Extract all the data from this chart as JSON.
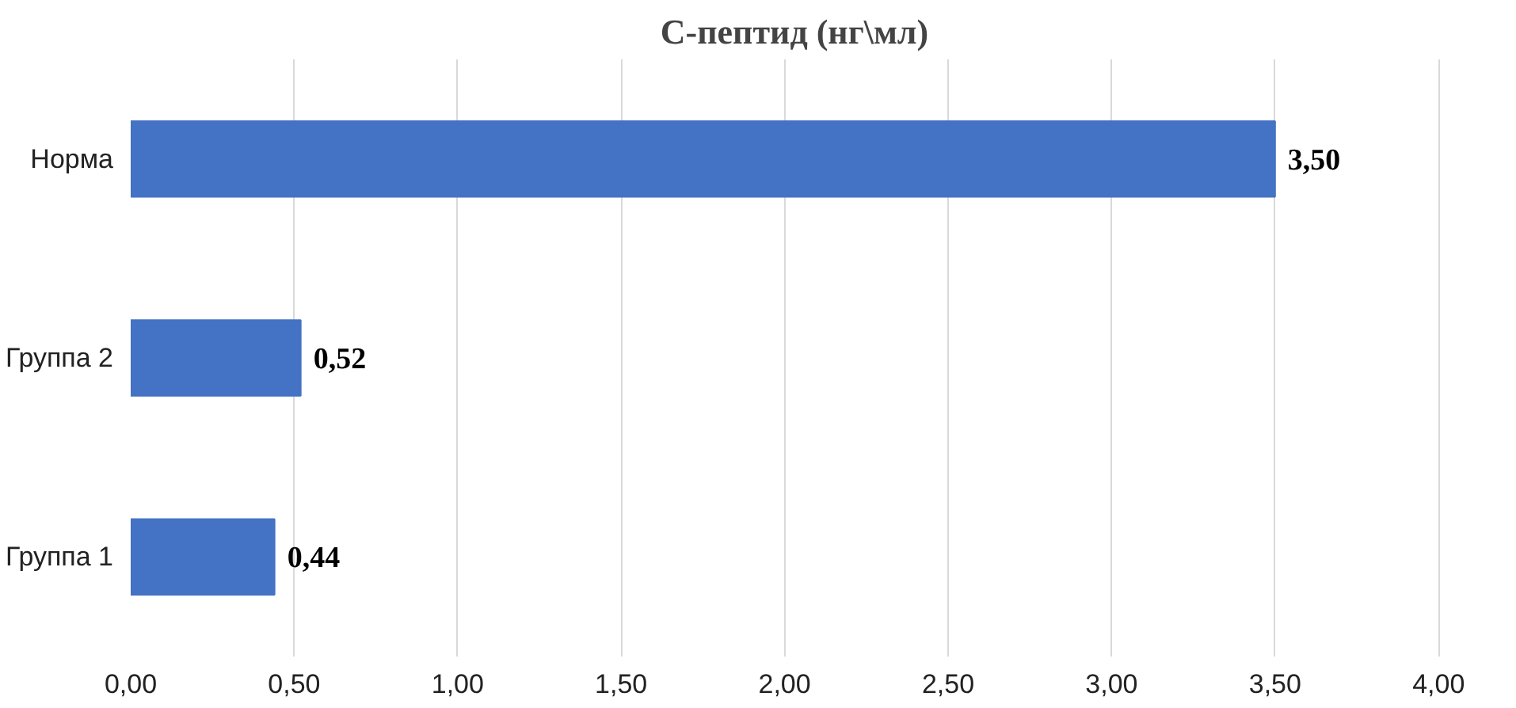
{
  "chart_data": {
    "type": "bar",
    "orientation": "horizontal",
    "title": "С-пептид (нг\\мл)",
    "categories": [
      "Норма",
      "Группа 2",
      "Группа 1"
    ],
    "values": [
      3.5,
      0.52,
      0.44
    ],
    "value_labels": [
      "3,50",
      "0,52",
      "0,44"
    ],
    "color": "#4472c4",
    "xlim": [
      0,
      4.0
    ],
    "xticks": [
      {
        "value": 0,
        "label": "0,00"
      },
      {
        "value": 0.5,
        "label": "0,50"
      },
      {
        "value": 1.0,
        "label": "1,00"
      },
      {
        "value": 1.5,
        "label": "1,50"
      },
      {
        "value": 2.0,
        "label": "2,00"
      },
      {
        "value": 2.5,
        "label": "2,50"
      },
      {
        "value": 3.0,
        "label": "3,00"
      },
      {
        "value": 3.5,
        "label": "3,50"
      },
      {
        "value": 4.0,
        "label": "4,00"
      }
    ],
    "grid": "x"
  }
}
